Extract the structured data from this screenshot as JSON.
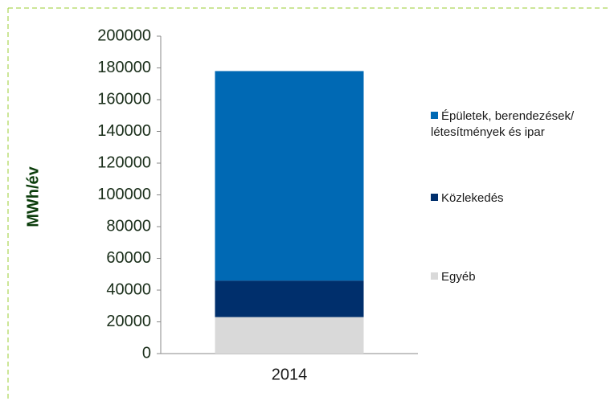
{
  "chart_data": {
    "type": "stacked_bar",
    "y_label": "MWh/év",
    "categories": [
      "2014"
    ],
    "series": [
      {
        "name": "Egyéb",
        "color": "#d9d9d9",
        "values": [
          23000
        ]
      },
      {
        "name": "Közlekedés",
        "color": "#002f6c",
        "values": [
          23000
        ]
      },
      {
        "name": "Épületek, berendezések/ létesítmények és ipar",
        "color": "#0069b4",
        "values": [
          132000
        ]
      }
    ],
    "ylim": [
      0,
      200000
    ],
    "yticks": [
      0,
      20000,
      40000,
      60000,
      80000,
      100000,
      120000,
      140000,
      160000,
      180000,
      200000
    ]
  }
}
